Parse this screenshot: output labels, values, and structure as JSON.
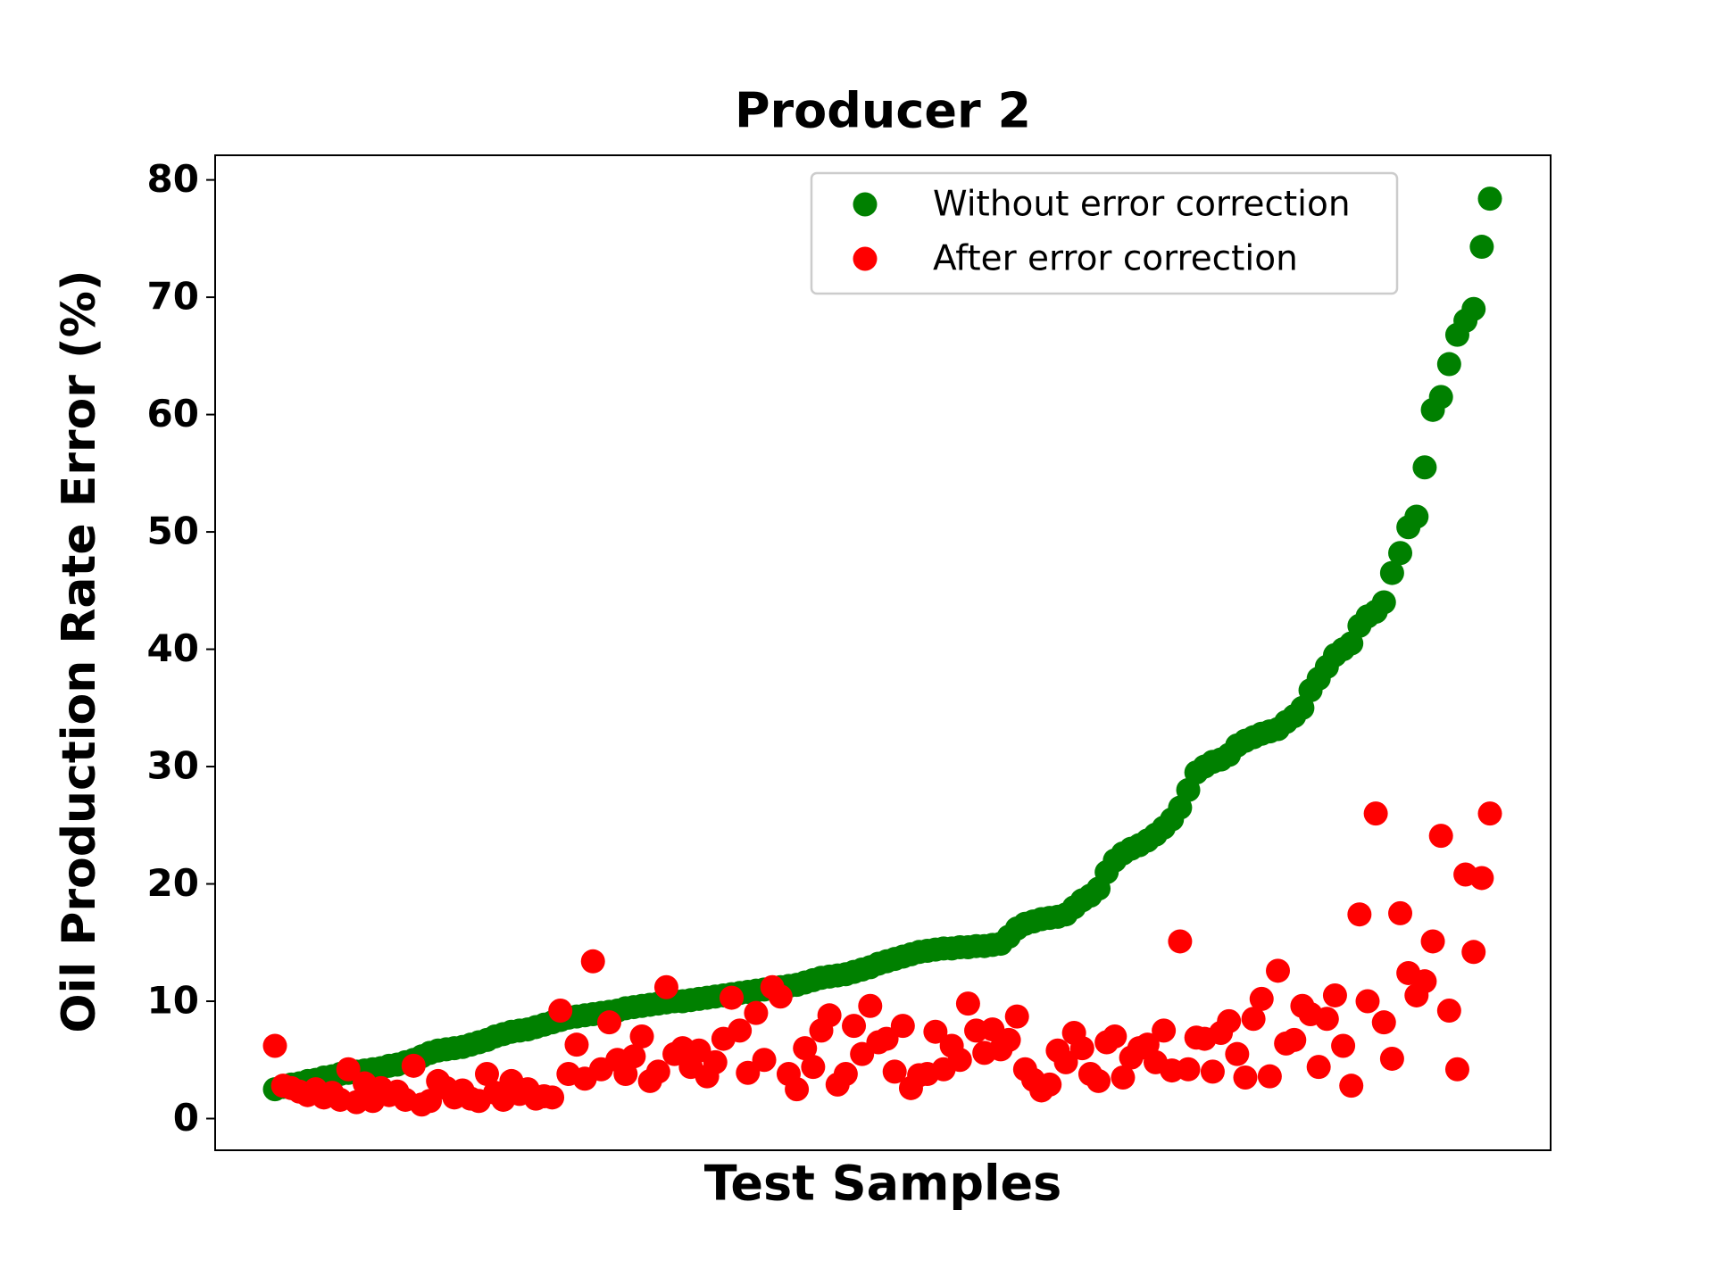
{
  "chart_data": {
    "type": "scatter",
    "title": "Producer 2",
    "x_label": "Test Samples",
    "y_label": "Oil Production Rate Error (%)",
    "ylim": [
      -2.7,
      82.1
    ],
    "yticks": [
      0,
      10,
      20,
      30,
      40,
      50,
      60,
      70,
      80
    ],
    "grid": false,
    "legend": "upper right",
    "series": [
      {
        "name": "Without error correction",
        "color": "#008000",
        "values": [
          2.5,
          2.7,
          2.9,
          3.0,
          3.2,
          3.3,
          3.5,
          3.6,
          3.8,
          3.9,
          4.0,
          4.1,
          4.2,
          4.3,
          4.5,
          4.6,
          4.8,
          5.0,
          5.3,
          5.6,
          5.8,
          5.9,
          6.0,
          6.1,
          6.3,
          6.5,
          6.7,
          7.0,
          7.2,
          7.4,
          7.5,
          7.6,
          7.8,
          8.0,
          8.2,
          8.4,
          8.6,
          8.7,
          8.8,
          8.9,
          9.0,
          9.1,
          9.2,
          9.4,
          9.5,
          9.6,
          9.7,
          9.8,
          9.9,
          10.0,
          10.0,
          10.1,
          10.2,
          10.3,
          10.4,
          10.5,
          10.6,
          10.7,
          10.8,
          10.9,
          11.0,
          11.1,
          11.2,
          11.3,
          11.4,
          11.6,
          11.8,
          12.0,
          12.1,
          12.2,
          12.3,
          12.5,
          12.7,
          12.9,
          13.2,
          13.4,
          13.6,
          13.8,
          14.0,
          14.2,
          14.3,
          14.4,
          14.5,
          14.5,
          14.6,
          14.6,
          14.7,
          14.7,
          14.8,
          14.9,
          15.5,
          16.2,
          16.6,
          16.8,
          17.0,
          17.1,
          17.2,
          17.4,
          18.0,
          18.6,
          19.0,
          19.6,
          21.0,
          22.0,
          22.6,
          23.0,
          23.3,
          23.7,
          24.2,
          24.8,
          25.5,
          26.5,
          28.0,
          29.5,
          30.0,
          30.4,
          30.6,
          31.0,
          31.8,
          32.2,
          32.5,
          32.8,
          33.0,
          33.2,
          33.8,
          34.3,
          35.0,
          36.5,
          37.5,
          38.5,
          39.5,
          40.0,
          40.5,
          42.0,
          42.8,
          43.2,
          44.0,
          46.5,
          48.2,
          50.4,
          51.3,
          55.5,
          60.4,
          61.5,
          64.3,
          66.8,
          68.0,
          69.0,
          74.3,
          78.4
        ]
      },
      {
        "name": "After error correction",
        "color": "#ff0000",
        "values": [
          6.2,
          2.8,
          2.6,
          2.3,
          2.0,
          2.5,
          1.8,
          2.2,
          1.6,
          4.2,
          1.4,
          3.0,
          1.5,
          2.6,
          2.0,
          2.3,
          1.6,
          4.5,
          1.2,
          1.5,
          3.2,
          2.6,
          1.8,
          2.4,
          1.7,
          1.5,
          3.8,
          2.2,
          1.6,
          3.2,
          2.1,
          2.5,
          1.7,
          1.9,
          1.8,
          9.2,
          3.8,
          6.3,
          3.4,
          13.4,
          4.2,
          8.2,
          5.0,
          3.8,
          5.3,
          7.0,
          3.2,
          4.0,
          11.2,
          5.5,
          6.0,
          4.4,
          5.8,
          3.6,
          4.8,
          6.8,
          10.3,
          7.5,
          3.9,
          9.0,
          5.0,
          11.2,
          10.4,
          3.8,
          2.5,
          6.0,
          4.4,
          7.5,
          8.8,
          2.9,
          3.8,
          7.9,
          5.5,
          9.6,
          6.5,
          6.8,
          4.0,
          7.9,
          2.6,
          3.7,
          3.8,
          7.4,
          4.2,
          6.2,
          5.0,
          9.8,
          7.5,
          5.6,
          7.6,
          5.9,
          6.7,
          8.7,
          4.2,
          3.3,
          2.4,
          2.9,
          5.8,
          4.8,
          7.3,
          6.0,
          3.8,
          3.2,
          6.5,
          7.0,
          3.5,
          5.2,
          6.0,
          6.3,
          4.8,
          7.5,
          4.1,
          15.1,
          4.2,
          6.9,
          6.8,
          4.0,
          7.3,
          8.3,
          5.5,
          3.5,
          8.5,
          10.2,
          3.6,
          12.6,
          6.4,
          6.7,
          9.6,
          8.9,
          4.4,
          8.5,
          10.5,
          6.2,
          2.8,
          17.4,
          10.0,
          26.0,
          8.2,
          5.1,
          17.5,
          12.4,
          10.5,
          11.7,
          15.1,
          24.1,
          9.2,
          4.2,
          20.8,
          14.2,
          20.5,
          26.0
        ]
      }
    ]
  }
}
